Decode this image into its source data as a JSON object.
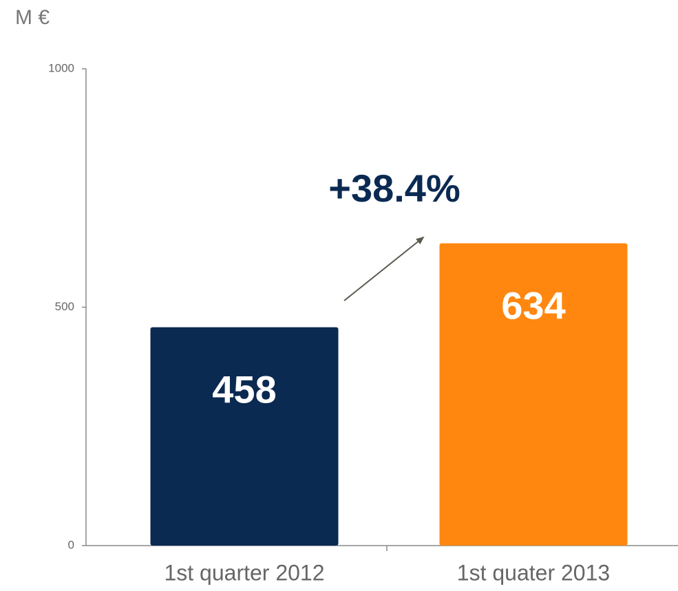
{
  "chart_data": {
    "type": "bar",
    "y_label": "M €",
    "annotation": "+38.4%",
    "categories": [
      "1st quarter 2012",
      "1st quater 2013"
    ],
    "values": [
      458,
      634
    ],
    "colors": [
      "#0b2a52",
      "#ff870f"
    ],
    "ylim": [
      0,
      1000
    ],
    "yticks": [
      0,
      500,
      1000
    ],
    "grid": false
  }
}
